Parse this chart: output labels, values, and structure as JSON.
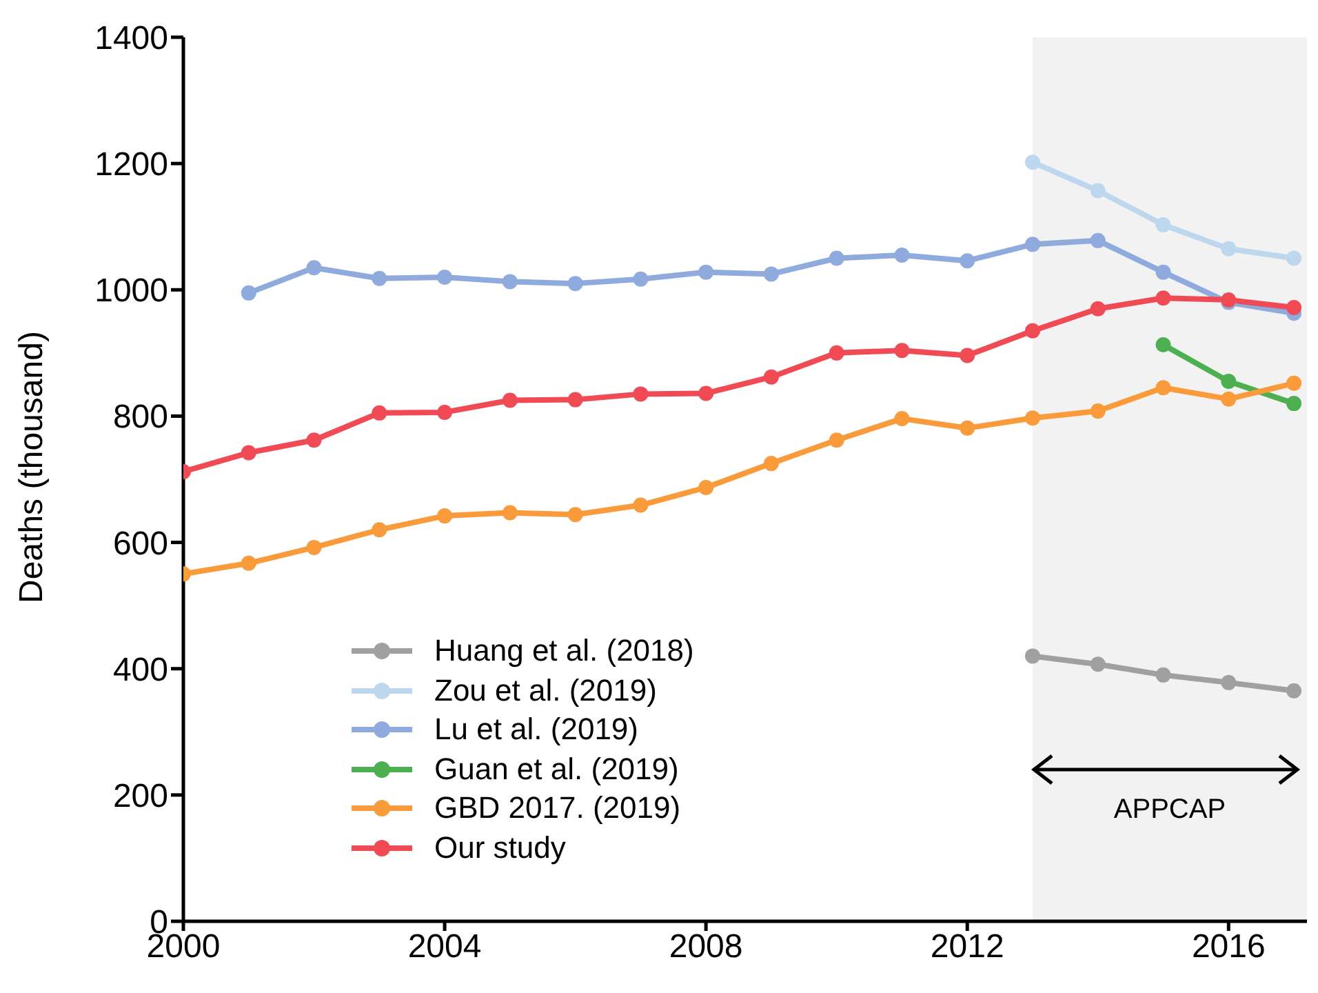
{
  "chart_data": {
    "type": "line",
    "ylabel": "Deaths (thousand)",
    "xlim": [
      2000,
      2017.2
    ],
    "xticks": [
      2000,
      2004,
      2008,
      2012,
      2016
    ],
    "ylim": [
      0,
      1400
    ],
    "yticks": [
      0,
      200,
      400,
      600,
      800,
      1000,
      1200,
      1400
    ],
    "legend": "bottom left",
    "marker": "circle",
    "line_style": "solid",
    "bands": [
      {
        "axis": "x",
        "from": 2013,
        "to": 2017.2,
        "label": "APPCAP",
        "color": "#f2f2f2"
      }
    ],
    "series": [
      {
        "name": "Huang et al. (2018)",
        "color": "#a0a0a0",
        "x": [
          2013,
          2014,
          2015,
          2016,
          2017
        ],
        "values": [
          420,
          407,
          390,
          378,
          365
        ]
      },
      {
        "name": "Zou et al. (2019)",
        "color": "#bdd7ee",
        "x": [
          2013,
          2014,
          2015,
          2016,
          2017
        ],
        "values": [
          1202,
          1157,
          1103,
          1065,
          1050
        ]
      },
      {
        "name": "Lu et al. (2019)",
        "color": "#8faadc",
        "x": [
          2001,
          2002,
          2003,
          2004,
          2005,
          2006,
          2007,
          2008,
          2009,
          2010,
          2011,
          2012,
          2013,
          2014,
          2015,
          2016,
          2017
        ],
        "values": [
          995,
          1035,
          1018,
          1020,
          1013,
          1010,
          1017,
          1028,
          1025,
          1050,
          1055,
          1046,
          1072,
          1078,
          1028,
          980,
          963
        ]
      },
      {
        "name": "Guan et al. (2019)",
        "color": "#4caf50",
        "x": [
          2015,
          2016,
          2017
        ],
        "values": [
          913,
          855,
          820
        ]
      },
      {
        "name": "GBD 2017. (2019)",
        "color": "#f99b3a",
        "x": [
          2000,
          2001,
          2002,
          2003,
          2004,
          2005,
          2006,
          2007,
          2008,
          2009,
          2010,
          2011,
          2012,
          2013,
          2014,
          2015,
          2016,
          2017
        ],
        "values": [
          550,
          567,
          592,
          620,
          642,
          647,
          644,
          659,
          687,
          725,
          762,
          796,
          781,
          797,
          808,
          845,
          827,
          852
        ]
      },
      {
        "name": "Our study",
        "color": "#f04b55",
        "x": [
          2000,
          2001,
          2002,
          2003,
          2004,
          2005,
          2006,
          2007,
          2008,
          2009,
          2010,
          2011,
          2012,
          2013,
          2014,
          2015,
          2016,
          2017
        ],
        "values": [
          712,
          742,
          762,
          805,
          806,
          825,
          826,
          835,
          836,
          862,
          900,
          904,
          896,
          935,
          970,
          987,
          984,
          972
        ]
      }
    ]
  }
}
